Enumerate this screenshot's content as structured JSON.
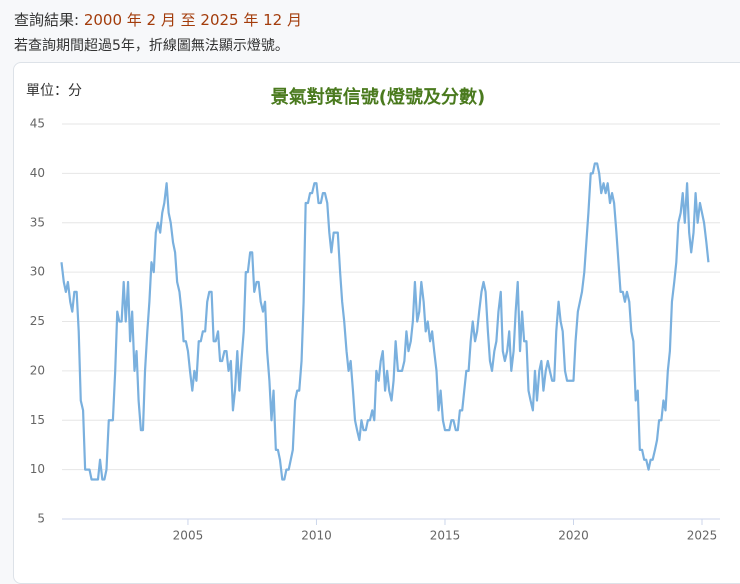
{
  "page": {
    "query_label": "查詢結果:",
    "query_range": "2000 年 2 月 至 2025 年 12 月",
    "note": "若查詢期間超過5年，折線圖無法顯示燈號。"
  },
  "chart_data": {
    "type": "line",
    "title": "景氣對策信號(燈號及分數)",
    "unit_label": "單位：分",
    "color": "#7ab0de",
    "grid": true,
    "xlim": [
      2000.1,
      2025.7
    ],
    "xticks": [
      2005,
      2010,
      2015,
      2020,
      2025
    ],
    "ylim": [
      5,
      45
    ],
    "yticks": [
      5,
      10,
      15,
      20,
      25,
      30,
      35,
      40,
      45
    ],
    "x": [
      2000.08,
      2000.17,
      2000.25,
      2000.33,
      2000.42,
      2000.5,
      2000.58,
      2000.67,
      2000.75,
      2000.83,
      2000.92,
      2001,
      2001.08,
      2001.17,
      2001.25,
      2001.33,
      2001.42,
      2001.5,
      2001.58,
      2001.67,
      2001.75,
      2001.83,
      2001.92,
      2002,
      2002.08,
      2002.17,
      2002.25,
      2002.33,
      2002.42,
      2002.5,
      2002.58,
      2002.67,
      2002.75,
      2002.83,
      2002.92,
      2003,
      2003.08,
      2003.17,
      2003.25,
      2003.33,
      2003.42,
      2003.5,
      2003.58,
      2003.67,
      2003.75,
      2003.83,
      2003.92,
      2004,
      2004.08,
      2004.17,
      2004.25,
      2004.33,
      2004.42,
      2004.5,
      2004.58,
      2004.67,
      2004.75,
      2004.83,
      2004.92,
      2005,
      2005.08,
      2005.17,
      2005.25,
      2005.33,
      2005.42,
      2005.5,
      2005.58,
      2005.67,
      2005.75,
      2005.83,
      2005.92,
      2006,
      2006.08,
      2006.17,
      2006.25,
      2006.33,
      2006.42,
      2006.5,
      2006.58,
      2006.67,
      2006.75,
      2006.83,
      2006.92,
      2007,
      2007.08,
      2007.17,
      2007.25,
      2007.33,
      2007.42,
      2007.5,
      2007.58,
      2007.67,
      2007.75,
      2007.83,
      2007.92,
      2008,
      2008.08,
      2008.17,
      2008.25,
      2008.33,
      2008.42,
      2008.5,
      2008.58,
      2008.67,
      2008.75,
      2008.83,
      2008.92,
      2009,
      2009.08,
      2009.17,
      2009.25,
      2009.33,
      2009.42,
      2009.5,
      2009.58,
      2009.67,
      2009.75,
      2009.83,
      2009.92,
      2010,
      2010.08,
      2010.17,
      2010.25,
      2010.33,
      2010.42,
      2010.5,
      2010.58,
      2010.67,
      2010.75,
      2010.83,
      2010.92,
      2011,
      2011.08,
      2011.17,
      2011.25,
      2011.33,
      2011.42,
      2011.5,
      2011.58,
      2011.67,
      2011.75,
      2011.83,
      2011.92,
      2012,
      2012.08,
      2012.17,
      2012.25,
      2012.33,
      2012.42,
      2012.5,
      2012.58,
      2012.67,
      2012.75,
      2012.83,
      2012.92,
      2013,
      2013.08,
      2013.17,
      2013.25,
      2013.33,
      2013.42,
      2013.5,
      2013.58,
      2013.67,
      2013.75,
      2013.83,
      2013.92,
      2014,
      2014.08,
      2014.17,
      2014.25,
      2014.33,
      2014.42,
      2014.5,
      2014.58,
      2014.67,
      2014.75,
      2014.83,
      2014.92,
      2015,
      2015.08,
      2015.17,
      2015.25,
      2015.33,
      2015.42,
      2015.5,
      2015.58,
      2015.67,
      2015.75,
      2015.83,
      2015.92,
      2016,
      2016.08,
      2016.17,
      2016.25,
      2016.33,
      2016.42,
      2016.5,
      2016.58,
      2016.67,
      2016.75,
      2016.83,
      2016.92,
      2017,
      2017.08,
      2017.17,
      2017.25,
      2017.33,
      2017.42,
      2017.5,
      2017.58,
      2017.67,
      2017.75,
      2017.83,
      2017.92,
      2018,
      2018.08,
      2018.17,
      2018.25,
      2018.33,
      2018.42,
      2018.5,
      2018.58,
      2018.67,
      2018.75,
      2018.83,
      2018.92,
      2019,
      2019.08,
      2019.17,
      2019.25,
      2019.33,
      2019.42,
      2019.5,
      2019.58,
      2019.67,
      2019.75,
      2019.83,
      2019.92,
      2020,
      2020.08,
      2020.17,
      2020.25,
      2020.33,
      2020.42,
      2020.5,
      2020.58,
      2020.67,
      2020.75,
      2020.83,
      2020.92,
      2021,
      2021.08,
      2021.17,
      2021.25,
      2021.33,
      2021.42,
      2021.5,
      2021.58,
      2021.67,
      2021.75,
      2021.83,
      2021.92,
      2022,
      2022.08,
      2022.17,
      2022.25,
      2022.33,
      2022.42,
      2022.5,
      2022.58,
      2022.67,
      2022.75,
      2022.83,
      2022.92,
      2023,
      2023.08,
      2023.17,
      2023.25,
      2023.33,
      2023.42,
      2023.5,
      2023.58,
      2023.67,
      2023.75,
      2023.83,
      2023.92,
      2024,
      2024.08,
      2024.17,
      2024.25,
      2024.33,
      2024.42,
      2024.5,
      2024.58,
      2024.67,
      2024.75,
      2024.83,
      2024.92,
      2025,
      2025.08,
      2025.17,
      2025.25
    ],
    "values": [
      31,
      29,
      28,
      29,
      27,
      26,
      28,
      28,
      24,
      17,
      16,
      10,
      10,
      10,
      9,
      9,
      9,
      9,
      11,
      9,
      9,
      10,
      15,
      15,
      15,
      20,
      26,
      25,
      25,
      29,
      25,
      29,
      23,
      26,
      20,
      22,
      17,
      14,
      14,
      20,
      24,
      27,
      31,
      30,
      34,
      35,
      34,
      36,
      37,
      39,
      36,
      35,
      33,
      32,
      29,
      28,
      26,
      23,
      23,
      22,
      20,
      18,
      20,
      19,
      23,
      23,
      24,
      24,
      27,
      28,
      28,
      23,
      23,
      24,
      21,
      21,
      22,
      22,
      20,
      21,
      16,
      18,
      22,
      18,
      21,
      24,
      30,
      30,
      32,
      32,
      28,
      29,
      29,
      27,
      26,
      27,
      22,
      19,
      15,
      18,
      12,
      12,
      11,
      9,
      9,
      10,
      10,
      11,
      12,
      17,
      18,
      18,
      21,
      27,
      37,
      37,
      38,
      38,
      39,
      39,
      37,
      37,
      38,
      38,
      37,
      34,
      32,
      34,
      34,
      34,
      30,
      27,
      25,
      22,
      20,
      21,
      18,
      15,
      14,
      13,
      15,
      14,
      14,
      15,
      15,
      16,
      15,
      20,
      19,
      21,
      22,
      18,
      20,
      18,
      17,
      19,
      23,
      20,
      20,
      20,
      21,
      24,
      22,
      23,
      25,
      29,
      25,
      26,
      29,
      27,
      24,
      25,
      23,
      24,
      22,
      20,
      16,
      18,
      15,
      14,
      14,
      14,
      15,
      15,
      14,
      14,
      16,
      16,
      18,
      20,
      20,
      23,
      25,
      23,
      24,
      26,
      28,
      29,
      28,
      24,
      21,
      20,
      22,
      23,
      26,
      28,
      22,
      21,
      22,
      24,
      20,
      22,
      26,
      29,
      22,
      26,
      23,
      23,
      18,
      17,
      16,
      20,
      17,
      20,
      21,
      18,
      20,
      21,
      20,
      19,
      19,
      24,
      27,
      25,
      24,
      20,
      19,
      19,
      19,
      19,
      23,
      26,
      27,
      28,
      30,
      33,
      36,
      40,
      40,
      41,
      41,
      40,
      38,
      39,
      38,
      39,
      37,
      38,
      37,
      34,
      31,
      28,
      28,
      27,
      28,
      27,
      24,
      23,
      17,
      18,
      12,
      12,
      11,
      11,
      10,
      11,
      11,
      12,
      13,
      15,
      15,
      17,
      16,
      20,
      22,
      27,
      29,
      31,
      35,
      36,
      38,
      35,
      39,
      34,
      32,
      34,
      38,
      35,
      37,
      36,
      35,
      33,
      31
    ]
  }
}
